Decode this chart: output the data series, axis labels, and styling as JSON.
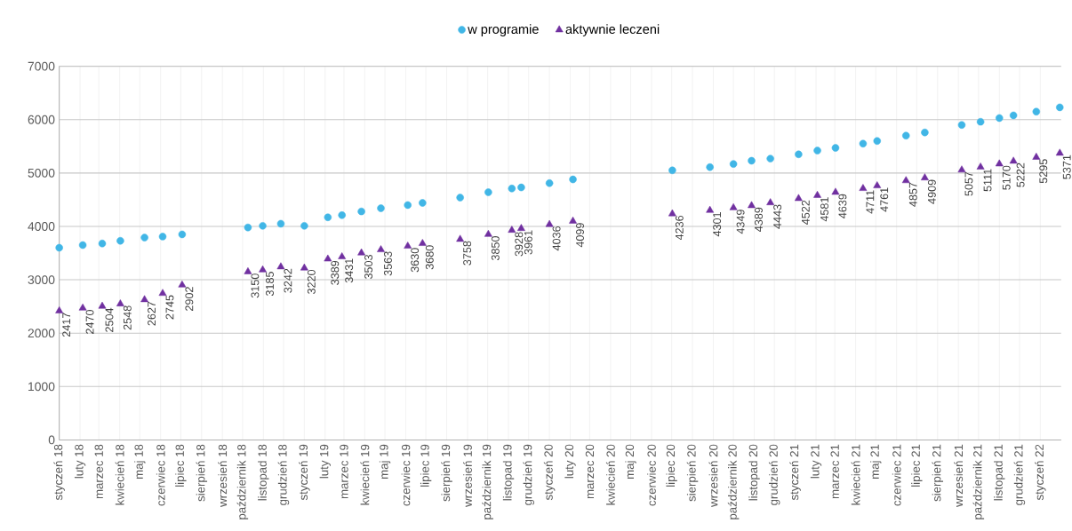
{
  "chart_data": {
    "type": "scatter",
    "x": [
      "2018-01-01",
      "2018-02-05",
      "2018-03-06",
      "2018-04-02",
      "2018-05-08",
      "2018-06-04",
      "2018-07-03",
      "2018-10-09",
      "2018-10-31",
      "2018-11-27",
      "2019-01-01",
      "2019-02-05",
      "2019-02-26",
      "2019-03-27",
      "2019-04-25",
      "2019-06-04",
      "2019-06-26",
      "2019-08-21",
      "2019-10-02",
      "2019-11-06",
      "2019-11-20",
      "2020-01-01",
      "2020-02-05",
      "2020-07-02",
      "2020-08-27",
      "2020-10-01",
      "2020-10-28",
      "2020-11-25",
      "2021-01-06",
      "2021-02-03",
      "2021-03-02",
      "2021-04-12",
      "2021-05-03",
      "2021-06-15",
      "2021-07-13",
      "2021-09-06",
      "2021-10-04",
      "2021-11-01",
      "2021-11-22",
      "2021-12-26",
      "2022-01-30"
    ],
    "series": [
      {
        "name": "w programie",
        "color": "#41b6e6",
        "marker": "circle",
        "values": [
          3600,
          3650,
          3680,
          3730,
          3790,
          3810,
          3850,
          3980,
          4010,
          4050,
          4010,
          4170,
          4210,
          4280,
          4340,
          4400,
          4440,
          4540,
          4640,
          4710,
          4730,
          4810,
          4880,
          5050,
          5110,
          5170,
          5230,
          5270,
          5350,
          5420,
          5470,
          5550,
          5600,
          5700,
          5760,
          5900,
          5960,
          6030,
          6080,
          6150,
          6230
        ]
      },
      {
        "name": "aktywnie leczeni",
        "color": "#7030a0",
        "marker": "triangle",
        "data_labels": true,
        "values": [
          2417,
          2470,
          2504,
          2548,
          2627,
          2745,
          2902,
          3150,
          3185,
          3242,
          3220,
          3389,
          3431,
          3503,
          3563,
          3630,
          3680,
          3758,
          3850,
          3928,
          3961,
          4036,
          4099,
          4236,
          4301,
          4349,
          4389,
          4443,
          4522,
          4581,
          4639,
          4711,
          4761,
          4857,
          4909,
          5057,
          5111,
          5170,
          5222,
          5295,
          5371
        ]
      }
    ],
    "xlim": [
      "2018-01-01",
      "2022-02-01"
    ],
    "xticks": [
      {
        "value": "2018-01-01",
        "label": "styczeń 18"
      },
      {
        "value": "2018-02-01",
        "label": "luty 18"
      },
      {
        "value": "2018-03-01",
        "label": "marzec 18"
      },
      {
        "value": "2018-04-01",
        "label": "kwiecień 18"
      },
      {
        "value": "2018-05-01",
        "label": "maj 18"
      },
      {
        "value": "2018-06-01",
        "label": "czerwiec 18"
      },
      {
        "value": "2018-07-01",
        "label": "lipiec 18"
      },
      {
        "value": "2018-08-01",
        "label": "sierpień 18"
      },
      {
        "value": "2018-09-01",
        "label": "wrzesień 18"
      },
      {
        "value": "2018-10-01",
        "label": "październik 18"
      },
      {
        "value": "2018-11-01",
        "label": "listopad 18"
      },
      {
        "value": "2018-12-01",
        "label": "grudzień 18"
      },
      {
        "value": "2019-01-01",
        "label": "styczeń 19"
      },
      {
        "value": "2019-02-01",
        "label": "luty 19"
      },
      {
        "value": "2019-03-01",
        "label": "marzec 19"
      },
      {
        "value": "2019-04-01",
        "label": "kwiecień 19"
      },
      {
        "value": "2019-05-01",
        "label": "maj 19"
      },
      {
        "value": "2019-06-01",
        "label": "czerwiec 19"
      },
      {
        "value": "2019-07-01",
        "label": "lipiec 19"
      },
      {
        "value": "2019-08-01",
        "label": "sierpień 19"
      },
      {
        "value": "2019-09-01",
        "label": "wrzesień 19"
      },
      {
        "value": "2019-10-01",
        "label": "październik 19"
      },
      {
        "value": "2019-11-01",
        "label": "listopad 19"
      },
      {
        "value": "2019-12-01",
        "label": "grudzień 19"
      },
      {
        "value": "2020-01-01",
        "label": "styczeń 20"
      },
      {
        "value": "2020-02-01",
        "label": "luty 20"
      },
      {
        "value": "2020-03-01",
        "label": "marzec 20"
      },
      {
        "value": "2020-04-01",
        "label": "kwiecień 20"
      },
      {
        "value": "2020-05-01",
        "label": "maj 20"
      },
      {
        "value": "2020-06-01",
        "label": "czerwiec 20"
      },
      {
        "value": "2020-07-01",
        "label": "lipiec 20"
      },
      {
        "value": "2020-08-01",
        "label": "sierpień 20"
      },
      {
        "value": "2020-09-01",
        "label": "wrzesień 20"
      },
      {
        "value": "2020-10-01",
        "label": "październik 20"
      },
      {
        "value": "2020-11-01",
        "label": "listopad 20"
      },
      {
        "value": "2020-12-01",
        "label": "grudzień 20"
      },
      {
        "value": "2021-01-01",
        "label": "styczeń 21"
      },
      {
        "value": "2021-02-01",
        "label": "luty 21"
      },
      {
        "value": "2021-03-01",
        "label": "marzec 21"
      },
      {
        "value": "2021-04-01",
        "label": "kwiecień 21"
      },
      {
        "value": "2021-05-01",
        "label": "maj 21"
      },
      {
        "value": "2021-06-01",
        "label": "czerwiec 21"
      },
      {
        "value": "2021-07-01",
        "label": "lipiec 21"
      },
      {
        "value": "2021-08-01",
        "label": "sierpień 21"
      },
      {
        "value": "2021-09-01",
        "label": "wrzesień 21"
      },
      {
        "value": "2021-10-01",
        "label": "październik 21"
      },
      {
        "value": "2021-11-01",
        "label": "listopad 21"
      },
      {
        "value": "2021-12-01",
        "label": "grudzień 21"
      },
      {
        "value": "2022-01-01",
        "label": "styczeń 22"
      }
    ],
    "ylim": [
      0,
      7000
    ],
    "yticks": [
      0,
      1000,
      2000,
      3000,
      4000,
      5000,
      6000,
      7000
    ],
    "grid": true,
    "legend": "top"
  }
}
